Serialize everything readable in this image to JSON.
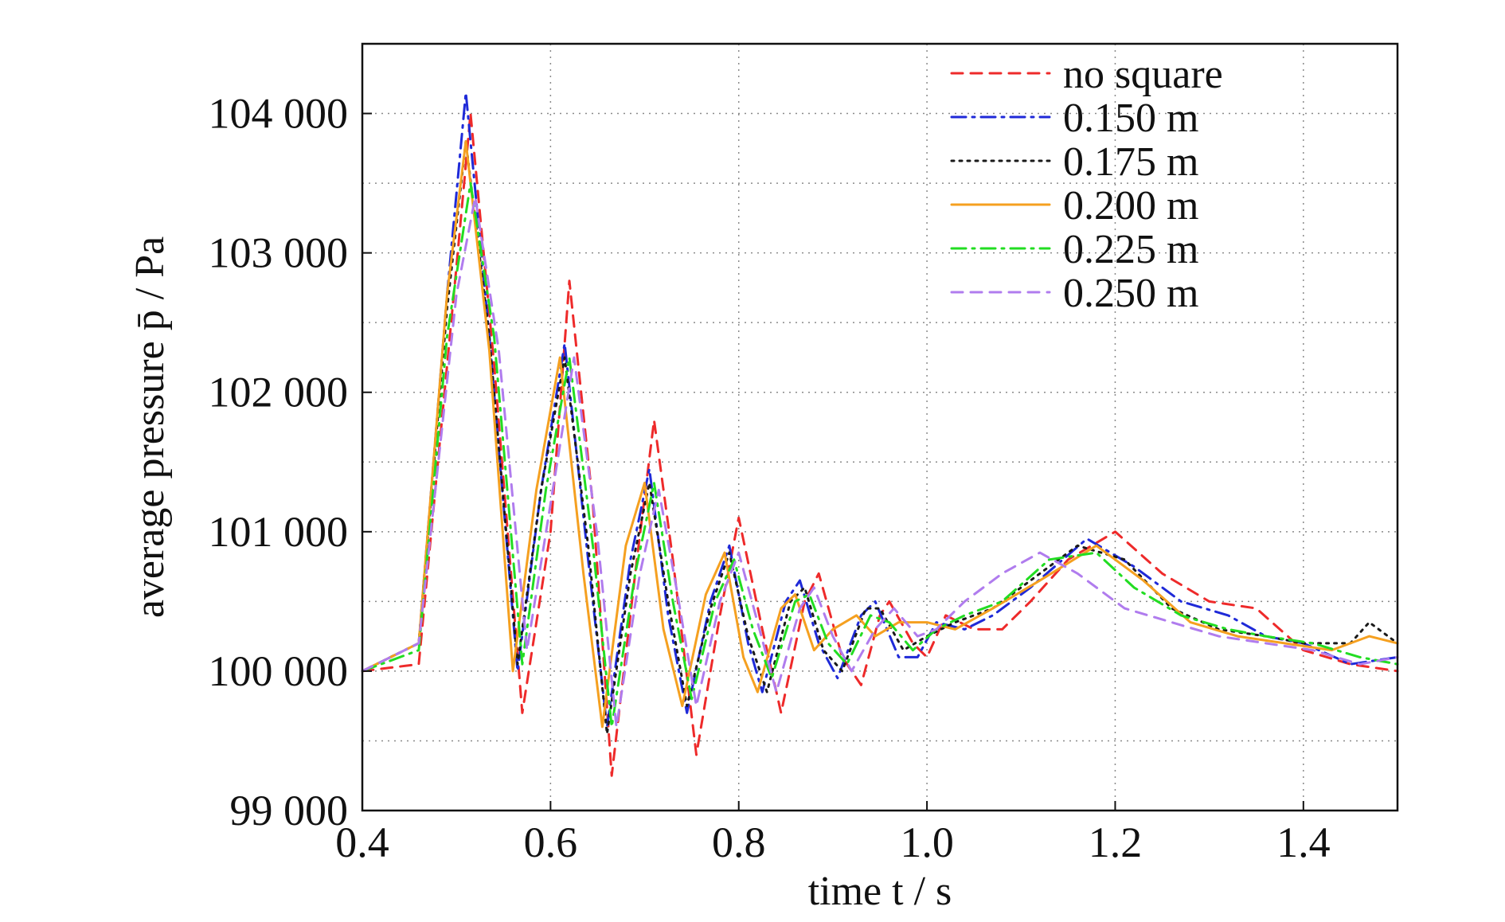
{
  "chart_data": {
    "type": "line",
    "title": "",
    "xlabel": "time t / s",
    "ylabel": "average pressure p̄ / Pa",
    "xlim": [
      0.4,
      1.5
    ],
    "ylim": [
      99000,
      104500
    ],
    "x_ticks": [
      {
        "value": 0.4,
        "label": "0.4"
      },
      {
        "value": 0.6,
        "label": "0.6"
      },
      {
        "value": 0.8,
        "label": "0.8"
      },
      {
        "value": 1.0,
        "label": "1.0"
      },
      {
        "value": 1.2,
        "label": "1.2"
      },
      {
        "value": 1.4,
        "label": "1.4"
      }
    ],
    "y_ticks": [
      {
        "value": 99000,
        "label": "99 000"
      },
      {
        "value": 100000,
        "label": "100 000"
      },
      {
        "value": 101000,
        "label": "101 000"
      },
      {
        "value": 102000,
        "label": "102 000"
      },
      {
        "value": 103000,
        "label": "103 000"
      },
      {
        "value": 104000,
        "label": "104 000"
      }
    ],
    "x_gridlines": [
      0.4,
      0.6,
      0.8,
      1.0,
      1.2,
      1.4
    ],
    "y_gridlines": [
      99500,
      100000,
      100500,
      101000,
      101500,
      102000,
      102500,
      103000,
      103500,
      104000
    ],
    "grid": true,
    "legend_position": "top-right",
    "series": [
      {
        "name": "no square",
        "color": "#ee2a2a",
        "dash": "dashed",
        "points": [
          [
            0.4,
            100000
          ],
          [
            0.46,
            100050
          ],
          [
            0.5,
            102900
          ],
          [
            0.515,
            104000
          ],
          [
            0.54,
            102200
          ],
          [
            0.57,
            99700
          ],
          [
            0.6,
            101000
          ],
          [
            0.62,
            102800
          ],
          [
            0.645,
            101200
          ],
          [
            0.665,
            99250
          ],
          [
            0.69,
            100700
          ],
          [
            0.71,
            101800
          ],
          [
            0.73,
            100800
          ],
          [
            0.755,
            99400
          ],
          [
            0.78,
            100400
          ],
          [
            0.8,
            101100
          ],
          [
            0.825,
            100300
          ],
          [
            0.845,
            99700
          ],
          [
            0.87,
            100500
          ],
          [
            0.885,
            100700
          ],
          [
            0.91,
            100100
          ],
          [
            0.93,
            99900
          ],
          [
            0.95,
            100400
          ],
          [
            0.96,
            100500
          ],
          [
            0.985,
            100200
          ],
          [
            1.0,
            100100
          ],
          [
            1.02,
            100400
          ],
          [
            1.05,
            100300
          ],
          [
            1.08,
            100300
          ],
          [
            1.11,
            100500
          ],
          [
            1.15,
            100800
          ],
          [
            1.2,
            101000
          ],
          [
            1.25,
            100700
          ],
          [
            1.3,
            100500
          ],
          [
            1.35,
            100450
          ],
          [
            1.4,
            100150
          ],
          [
            1.45,
            100050
          ],
          [
            1.5,
            100000
          ]
        ]
      },
      {
        "name": "0.150 m",
        "color": "#1f2ad8",
        "dash": "dashdot",
        "points": [
          [
            0.4,
            100000
          ],
          [
            0.46,
            100200
          ],
          [
            0.49,
            102700
          ],
          [
            0.51,
            104150
          ],
          [
            0.535,
            102400
          ],
          [
            0.565,
            100000
          ],
          [
            0.59,
            101300
          ],
          [
            0.615,
            102350
          ],
          [
            0.64,
            100800
          ],
          [
            0.66,
            99600
          ],
          [
            0.685,
            100800
          ],
          [
            0.705,
            101450
          ],
          [
            0.725,
            100400
          ],
          [
            0.745,
            99700
          ],
          [
            0.77,
            100500
          ],
          [
            0.79,
            100900
          ],
          [
            0.81,
            100200
          ],
          [
            0.825,
            99850
          ],
          [
            0.85,
            100500
          ],
          [
            0.865,
            100650
          ],
          [
            0.885,
            100200
          ],
          [
            0.905,
            99950
          ],
          [
            0.93,
            100400
          ],
          [
            0.945,
            100500
          ],
          [
            0.97,
            100100
          ],
          [
            0.99,
            100100
          ],
          [
            1.01,
            100350
          ],
          [
            1.04,
            100300
          ],
          [
            1.07,
            100400
          ],
          [
            1.11,
            100600
          ],
          [
            1.17,
            100950
          ],
          [
            1.22,
            100750
          ],
          [
            1.27,
            100500
          ],
          [
            1.32,
            100400
          ],
          [
            1.36,
            100250
          ],
          [
            1.4,
            100200
          ],
          [
            1.45,
            100050
          ],
          [
            1.5,
            100100
          ]
        ]
      },
      {
        "name": "0.175 m",
        "color": "#1a1a1a",
        "dash": "dotted",
        "points": [
          [
            0.4,
            100000
          ],
          [
            0.46,
            100200
          ],
          [
            0.49,
            102600
          ],
          [
            0.51,
            103800
          ],
          [
            0.535,
            102400
          ],
          [
            0.565,
            100050
          ],
          [
            0.59,
            101300
          ],
          [
            0.615,
            102250
          ],
          [
            0.64,
            100900
          ],
          [
            0.66,
            99550
          ],
          [
            0.685,
            100700
          ],
          [
            0.705,
            101350
          ],
          [
            0.725,
            100500
          ],
          [
            0.745,
            99750
          ],
          [
            0.77,
            100450
          ],
          [
            0.79,
            100850
          ],
          [
            0.81,
            100250
          ],
          [
            0.83,
            99850
          ],
          [
            0.855,
            100500
          ],
          [
            0.87,
            100600
          ],
          [
            0.89,
            100150
          ],
          [
            0.91,
            100000
          ],
          [
            0.935,
            100450
          ],
          [
            0.95,
            100450
          ],
          [
            0.975,
            100150
          ],
          [
            1.0,
            100250
          ],
          [
            1.03,
            100350
          ],
          [
            1.07,
            100450
          ],
          [
            1.11,
            100650
          ],
          [
            1.16,
            100900
          ],
          [
            1.21,
            100800
          ],
          [
            1.26,
            100450
          ],
          [
            1.31,
            100300
          ],
          [
            1.36,
            100250
          ],
          [
            1.4,
            100200
          ],
          [
            1.45,
            100200
          ],
          [
            1.47,
            100350
          ],
          [
            1.5,
            100200
          ]
        ]
      },
      {
        "name": "0.200 m",
        "color": "#f5a020",
        "dash": "solid",
        "points": [
          [
            0.4,
            100000
          ],
          [
            0.46,
            100200
          ],
          [
            0.49,
            102700
          ],
          [
            0.51,
            103800
          ],
          [
            0.535,
            102300
          ],
          [
            0.56,
            100000
          ],
          [
            0.585,
            101300
          ],
          [
            0.61,
            102250
          ],
          [
            0.635,
            100700
          ],
          [
            0.655,
            99600
          ],
          [
            0.68,
            100900
          ],
          [
            0.7,
            101350
          ],
          [
            0.72,
            100300
          ],
          [
            0.74,
            99750
          ],
          [
            0.765,
            100550
          ],
          [
            0.785,
            100850
          ],
          [
            0.805,
            100100
          ],
          [
            0.82,
            99850
          ],
          [
            0.845,
            100450
          ],
          [
            0.86,
            100550
          ],
          [
            0.88,
            100150
          ],
          [
            0.9,
            100300
          ],
          [
            0.925,
            100400
          ],
          [
            0.945,
            100250
          ],
          [
            0.97,
            100350
          ],
          [
            1.0,
            100350
          ],
          [
            1.03,
            100300
          ],
          [
            1.07,
            100450
          ],
          [
            1.12,
            100650
          ],
          [
            1.18,
            100900
          ],
          [
            1.23,
            100650
          ],
          [
            1.28,
            100350
          ],
          [
            1.33,
            100250
          ],
          [
            1.38,
            100200
          ],
          [
            1.43,
            100150
          ],
          [
            1.47,
            100250
          ],
          [
            1.5,
            100200
          ]
        ]
      },
      {
        "name": "0.225 m",
        "color": "#22dd22",
        "dash": "dashdot",
        "points": [
          [
            0.4,
            100000
          ],
          [
            0.46,
            100150
          ],
          [
            0.49,
            102400
          ],
          [
            0.515,
            103500
          ],
          [
            0.54,
            102400
          ],
          [
            0.57,
            100050
          ],
          [
            0.595,
            101300
          ],
          [
            0.62,
            102250
          ],
          [
            0.645,
            100900
          ],
          [
            0.665,
            99600
          ],
          [
            0.69,
            100700
          ],
          [
            0.71,
            101350
          ],
          [
            0.73,
            100500
          ],
          [
            0.75,
            99800
          ],
          [
            0.775,
            100500
          ],
          [
            0.795,
            100800
          ],
          [
            0.815,
            100300
          ],
          [
            0.835,
            99950
          ],
          [
            0.86,
            100500
          ],
          [
            0.875,
            100550
          ],
          [
            0.895,
            100200
          ],
          [
            0.915,
            100050
          ],
          [
            0.94,
            100400
          ],
          [
            0.96,
            100350
          ],
          [
            0.985,
            100150
          ],
          [
            1.01,
            100300
          ],
          [
            1.04,
            100400
          ],
          [
            1.08,
            100500
          ],
          [
            1.13,
            100800
          ],
          [
            1.18,
            100850
          ],
          [
            1.22,
            100600
          ],
          [
            1.27,
            100400
          ],
          [
            1.32,
            100300
          ],
          [
            1.36,
            100250
          ],
          [
            1.41,
            100200
          ],
          [
            1.46,
            100100
          ],
          [
            1.5,
            100050
          ]
        ]
      },
      {
        "name": "0.250 m",
        "color": "#b07cee",
        "dash": "dashed",
        "points": [
          [
            0.4,
            100000
          ],
          [
            0.46,
            100200
          ],
          [
            0.5,
            102700
          ],
          [
            0.52,
            103400
          ],
          [
            0.545,
            102300
          ],
          [
            0.575,
            100150
          ],
          [
            0.6,
            101200
          ],
          [
            0.625,
            102250
          ],
          [
            0.65,
            100950
          ],
          [
            0.67,
            99600
          ],
          [
            0.695,
            100700
          ],
          [
            0.715,
            101300
          ],
          [
            0.735,
            100550
          ],
          [
            0.755,
            99750
          ],
          [
            0.78,
            100500
          ],
          [
            0.8,
            100850
          ],
          [
            0.82,
            100350
          ],
          [
            0.84,
            99850
          ],
          [
            0.865,
            100450
          ],
          [
            0.88,
            100600
          ],
          [
            0.9,
            100250
          ],
          [
            0.92,
            100000
          ],
          [
            0.945,
            100300
          ],
          [
            0.965,
            100450
          ],
          [
            0.99,
            100250
          ],
          [
            1.01,
            100300
          ],
          [
            1.04,
            100500
          ],
          [
            1.08,
            100700
          ],
          [
            1.12,
            100850
          ],
          [
            1.16,
            100700
          ],
          [
            1.21,
            100450
          ],
          [
            1.26,
            100350
          ],
          [
            1.31,
            100250
          ],
          [
            1.36,
            100200
          ],
          [
            1.41,
            100150
          ],
          [
            1.46,
            100050
          ],
          [
            1.5,
            100100
          ]
        ]
      }
    ]
  }
}
